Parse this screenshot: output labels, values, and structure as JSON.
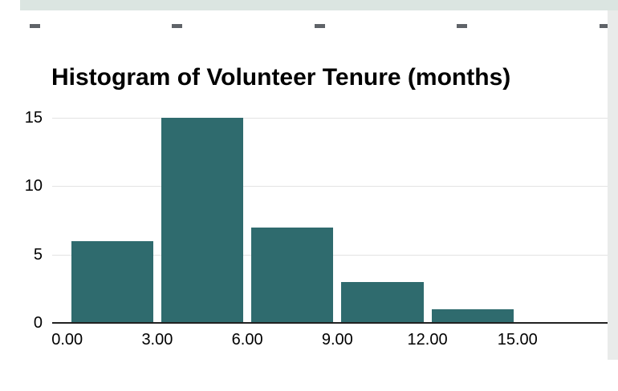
{
  "chart_data": {
    "type": "bar",
    "subtype": "histogram",
    "title": "Histogram of Volunteer Tenure (months)",
    "bins": [
      [
        0,
        3
      ],
      [
        3,
        6
      ],
      [
        6,
        9
      ],
      [
        9,
        12
      ],
      [
        12,
        15
      ]
    ],
    "values": [
      6,
      15,
      7,
      3,
      1
    ],
    "x_ticks": [
      0,
      3,
      6,
      9,
      12,
      15
    ],
    "x_tick_labels": [
      "0.00",
      "3.00",
      "6.00",
      "9.00",
      "12.00",
      "15.00"
    ],
    "y_ticks": [
      0,
      5,
      10,
      15
    ],
    "y_tick_labels": [
      "0",
      "5",
      "10",
      "15"
    ],
    "xlim": [
      0,
      18
    ],
    "ylim": [
      0,
      15
    ],
    "grid": true,
    "legend": false,
    "bar_color": "#2f6b6e"
  },
  "colors": {
    "bar": "#2f6b6e",
    "sheet_row_band": "#dbe5e1",
    "cell_mark": "#5f6368",
    "right_panel": "#e9ebea",
    "baseline": "#212121",
    "gridline": "#e3e3e3",
    "title_text": "#000000"
  }
}
